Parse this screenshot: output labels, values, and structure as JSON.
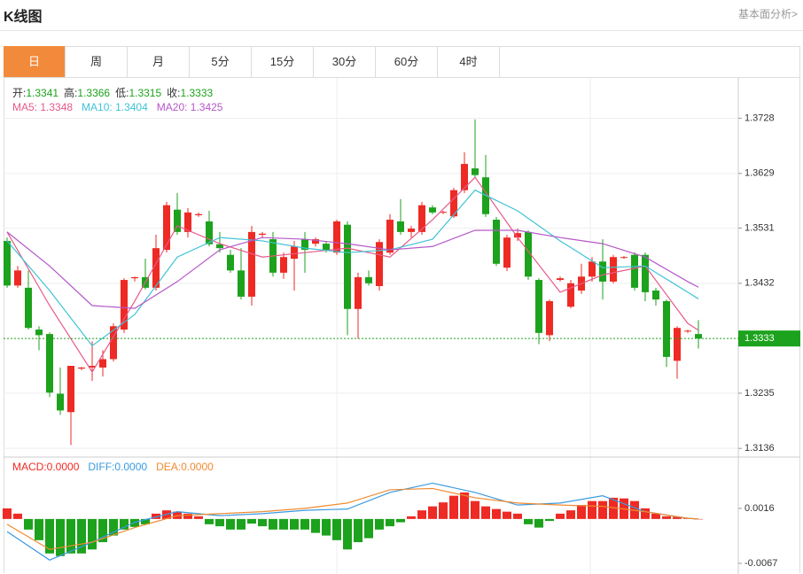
{
  "header": {
    "title": "K线图",
    "link": "基本面分析>"
  },
  "tabs": {
    "items": [
      "日",
      "周",
      "月",
      "5分",
      "15分",
      "30分",
      "60分",
      "4时"
    ],
    "active": "日"
  },
  "chart_data": [
    {
      "type": "candlestick",
      "readout": [
        {
          "label": "开:",
          "value": "1.3341"
        },
        {
          "label": "高:",
          "value": "1.3366"
        },
        {
          "label": "低:",
          "value": "1.3315"
        },
        {
          "label": "收:",
          "value": "1.3333"
        }
      ],
      "up_color": "#ee2a24",
      "down_color": "#1ca21c",
      "open": [
        1.3508,
        1.3428,
        1.3424,
        1.3349,
        1.3341,
        1.3234,
        1.3201,
        1.3279,
        1.3281,
        1.3281,
        1.3296,
        1.3349,
        1.3441,
        1.3443,
        1.3424,
        1.3492,
        1.3564,
        1.3524,
        1.3554,
        1.3543,
        1.3502,
        1.3483,
        1.3455,
        1.3408,
        1.3519,
        1.3511,
        1.3451,
        1.3476,
        1.3511,
        1.3503,
        1.3503,
        1.3487,
        1.3537,
        1.3386,
        1.3443,
        1.3427,
        1.3487,
        1.3543,
        1.3524,
        1.3524,
        1.3568,
        1.3559,
        1.3552,
        1.3599,
        1.3638,
        1.3622,
        1.3546,
        1.346,
        1.3514,
        1.3524,
        1.3438,
        1.3339,
        1.3438,
        1.339,
        1.3419,
        1.3444,
        1.3471,
        1.3435,
        1.3478,
        1.3483,
        1.3483,
        1.3419,
        1.34,
        1.3293,
        1.3346,
        1.3341
      ],
      "high": [
        1.3514,
        1.3463,
        1.3455,
        1.3355,
        1.3344,
        1.3281,
        1.3284,
        1.3282,
        1.3328,
        1.3312,
        1.336,
        1.3441,
        1.3444,
        1.3476,
        1.3519,
        1.3578,
        1.3594,
        1.3567,
        1.3559,
        1.3562,
        1.3524,
        1.3492,
        1.3495,
        1.3535,
        1.3524,
        1.3524,
        1.3487,
        1.3508,
        1.3524,
        1.3514,
        1.3508,
        1.3546,
        1.3543,
        1.3451,
        1.3455,
        1.3511,
        1.3556,
        1.3583,
        1.3535,
        1.3578,
        1.3572,
        1.3562,
        1.3603,
        1.3667,
        1.3726,
        1.3662,
        1.3551,
        1.3519,
        1.353,
        1.3527,
        1.3441,
        1.3403,
        1.3444,
        1.3438,
        1.3467,
        1.3479,
        1.3511,
        1.3483,
        1.3481,
        1.3487,
        1.3487,
        1.3424,
        1.3403,
        1.3355,
        1.3349,
        1.3366
      ],
      "low": [
        1.3424,
        1.3424,
        1.3349,
        1.3312,
        1.3228,
        1.3196,
        1.3142,
        1.3276,
        1.3257,
        1.3265,
        1.3292,
        1.3343,
        1.3435,
        1.3421,
        1.3419,
        1.3487,
        1.3519,
        1.3514,
        1.3551,
        1.3498,
        1.3487,
        1.3451,
        1.3403,
        1.3392,
        1.3514,
        1.3444,
        1.344,
        1.3419,
        1.3451,
        1.3498,
        1.3487,
        1.3483,
        1.3339,
        1.3333,
        1.3428,
        1.3419,
        1.3483,
        1.3519,
        1.3514,
        1.3519,
        1.3556,
        1.3556,
        1.3549,
        1.3594,
        1.3622,
        1.3551,
        1.3463,
        1.3454,
        1.3508,
        1.3438,
        1.3323,
        1.3328,
        1.3435,
        1.3387,
        1.3413,
        1.3435,
        1.3403,
        1.3432,
        1.3476,
        1.3419,
        1.34,
        1.3392,
        1.3282,
        1.3261,
        1.3343,
        1.3315
      ],
      "close": [
        1.3428,
        1.3455,
        1.3352,
        1.3339,
        1.3236,
        1.3204,
        1.3284,
        1.3281,
        1.3284,
        1.3296,
        1.3355,
        1.3438,
        1.3443,
        1.3424,
        1.3495,
        1.3572,
        1.3524,
        1.3559,
        1.3556,
        1.3502,
        1.3495,
        1.3455,
        1.3408,
        1.3524,
        1.3521,
        1.3451,
        1.3479,
        1.3498,
        1.3492,
        1.3511,
        1.349,
        1.3543,
        1.3386,
        1.3443,
        1.3432,
        1.3506,
        1.3546,
        1.3524,
        1.353,
        1.3572,
        1.3559,
        1.356,
        1.3599,
        1.3646,
        1.3626,
        1.3556,
        1.3467,
        1.3514,
        1.3522,
        1.3444,
        1.3343,
        1.34,
        1.3441,
        1.3432,
        1.3444,
        1.3471,
        1.3435,
        1.3479,
        1.3479,
        1.3424,
        1.3416,
        1.3403,
        1.33,
        1.3352,
        1.3347,
        1.3333
      ],
      "series": [
        {
          "label": "MA5: 1.3348",
          "color": "#e8598a",
          "x": [
            0,
            4,
            8,
            12,
            16,
            20,
            24,
            28,
            32,
            36,
            40,
            44,
            48,
            52,
            56,
            60,
            64,
            65
          ],
          "values": [
            1.3524,
            1.3392,
            1.3273,
            1.34,
            1.3535,
            1.3503,
            1.3479,
            1.3487,
            1.3495,
            1.3479,
            1.3546,
            1.3622,
            1.3514,
            1.3416,
            1.3447,
            1.3463,
            1.336,
            1.3348
          ]
        },
        {
          "label": "MA10: 1.3404",
          "color": "#3fc3d6",
          "x": [
            0,
            4,
            8,
            12,
            16,
            20,
            24,
            28,
            32,
            36,
            40,
            44,
            48,
            52,
            56,
            60,
            64,
            65
          ],
          "values": [
            1.3508,
            1.3419,
            1.332,
            1.3376,
            1.3479,
            1.3514,
            1.3508,
            1.3495,
            1.3487,
            1.3492,
            1.3511,
            1.3599,
            1.3562,
            1.3508,
            1.346,
            1.3463,
            1.3416,
            1.3404
          ]
        },
        {
          "label": "MA20: 1.3425",
          "color": "#b457c8",
          "x": [
            0,
            4,
            8,
            12,
            16,
            20,
            24,
            28,
            32,
            36,
            40,
            44,
            48,
            52,
            56,
            60,
            64,
            65
          ],
          "values": [
            1.3524,
            1.3463,
            1.3392,
            1.3387,
            1.3435,
            1.3492,
            1.3514,
            1.3511,
            1.3503,
            1.3492,
            1.3498,
            1.3527,
            1.3527,
            1.3514,
            1.3503,
            1.3479,
            1.3435,
            1.3425
          ]
        }
      ],
      "ylim": [
        1.3122,
        1.3797
      ],
      "yticks": [
        1.3136,
        1.3235,
        1.3432,
        1.3531,
        1.3629,
        1.3728
      ],
      "grid": true,
      "last_price": {
        "value": 1.3333,
        "label": "1.3333"
      }
    },
    {
      "type": "macd",
      "bars": {
        "label": "MACD:0.0000",
        "color": "#ee2a24",
        "up_color": "#ee2a24",
        "down_color": "#1ca21c",
        "values": [
          0.0016,
          0.0008,
          -0.0016,
          -0.0032,
          -0.0052,
          -0.0056,
          -0.0052,
          -0.0052,
          -0.0046,
          -0.0035,
          -0.0025,
          -0.0016,
          -0.0012,
          -0.0008,
          0.0008,
          0.0013,
          0.0011,
          0.0008,
          0.0004,
          -0.0008,
          -0.0011,
          -0.0016,
          -0.0016,
          -0.0007,
          -0.0011,
          -0.0016,
          -0.0016,
          -0.0016,
          -0.0016,
          -0.0021,
          -0.0025,
          -0.0032,
          -0.0046,
          -0.0035,
          -0.0029,
          -0.0016,
          -0.0011,
          -0.0005,
          0.0004,
          0.0013,
          0.0019,
          0.0025,
          0.0035,
          0.004,
          0.0027,
          0.0019,
          0.0015,
          0.0011,
          0.0008,
          -0.0008,
          -0.0013,
          -0.0003,
          0.0008,
          0.0013,
          0.0021,
          0.0027,
          0.0027,
          0.0032,
          0.0031,
          0.0027,
          0.0016,
          0.0008,
          0.0004,
          0.0003,
          0.0001,
          0
        ]
      },
      "series": [
        {
          "label": "DIFF:0.0000",
          "color": "#3a9ae0",
          "x": [
            0,
            4,
            8,
            12,
            16,
            20,
            24,
            28,
            32,
            36,
            40,
            44,
            48,
            52,
            56,
            60,
            64,
            65
          ],
          "values": [
            -0.0019,
            -0.0062,
            -0.0035,
            -0.0005,
            0.0011,
            0.0005,
            0.0008,
            0.0013,
            0.0015,
            0.004,
            0.0054,
            0.004,
            0.0021,
            0.0024,
            0.0035,
            0.0011,
            0.0001,
            0
          ]
        },
        {
          "label": "DEA:0.0000",
          "color": "#f08a30",
          "x": [
            0,
            4,
            8,
            12,
            16,
            20,
            24,
            28,
            32,
            36,
            40,
            44,
            48,
            52,
            56,
            60,
            64,
            65
          ],
          "values": [
            -0.0008,
            -0.0046,
            -0.0035,
            -0.0013,
            0.0005,
            0.0008,
            0.0011,
            0.0016,
            0.0024,
            0.0044,
            0.0046,
            0.0032,
            0.0024,
            0.0021,
            0.0019,
            0.0011,
            0.0001,
            0
          ]
        }
      ],
      "ylim": [
        -0.0083,
        0.0092
      ],
      "yticks": [
        -0.0067,
        0.0016
      ]
    }
  ]
}
